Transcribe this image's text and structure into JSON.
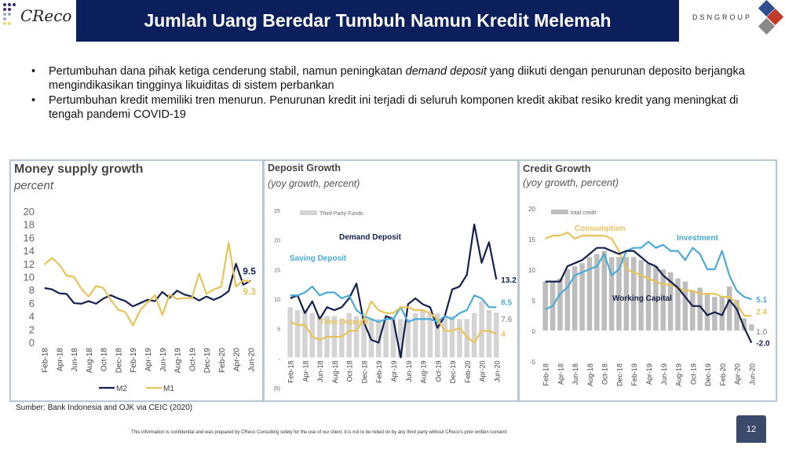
{
  "header": {
    "title": "Jumlah Uang Beredar Tumbuh Namun Kredit Melemah",
    "logo_left": "CReco",
    "logo_right": "DSNGROUP"
  },
  "bullets": [
    {
      "pre": "Pertumbuhan dana pihak ketiga cenderung stabil, namun peningkatan ",
      "em": "demand deposit",
      "post": " yang diikuti dengan penurunan deposito berjangka mengindikasikan tingginya likuiditas di sistem perbankan"
    },
    {
      "pre": "Pertumbuhan kredit memiliki tren menurun. Penurunan kredit ini terjadi di seluruh komponen kredit akibat resiko kredit yang meningkat di tengah pandemi COVID-19",
      "em": "",
      "post": ""
    }
  ],
  "source": "Sumber: Bank Indonesia and OJK via CEIC (2020)",
  "footer": "This information is confidential and was prepared by CReco Consulting solely for the use of our client; it is not to be relied on by any third party without CReco's prior written consent",
  "page_number": "12",
  "chart_data": [
    {
      "type": "line",
      "title": "Money supply growth",
      "subtitle": "percent",
      "ylim": [
        0,
        20
      ],
      "yticks": [
        "0",
        "2",
        "4",
        "6",
        "8",
        "10",
        "12",
        "14",
        "16",
        "18",
        "20"
      ],
      "ytick_values": [
        0,
        2,
        4,
        6,
        8,
        10,
        12,
        14,
        16,
        18,
        20
      ],
      "xticks": [
        "Feb-18",
        "Apr-18",
        "Jun-18",
        "Aug-18",
        "Oct-18",
        "Dec-18",
        "Feb-19",
        "Apr-19",
        "Jun-19",
        "Aug-19",
        "Oct-19",
        "Dec-19",
        "Feb-20",
        "Apr-20",
        "Jun-20"
      ],
      "legend": [
        "M2",
        "M1"
      ],
      "series": [
        {
          "name": "M2",
          "color": "#15214d",
          "values": [
            8.4,
            8.2,
            7.6,
            7.5,
            6.1,
            6.0,
            6.4,
            6.0,
            6.8,
            7.3,
            6.8,
            6.4,
            5.6,
            6.1,
            6.6,
            6.4,
            7.8,
            6.9,
            8.0,
            7.4,
            7.1,
            6.5,
            7.1,
            6.6,
            7.1,
            7.9,
            12.1,
            8.9,
            9.5
          ],
          "end_label": "9.5"
        },
        {
          "name": "M1",
          "color": "#e8c25a",
          "values": [
            12.0,
            13.0,
            12.0,
            10.3,
            10.1,
            8.3,
            7.1,
            8.7,
            8.4,
            6.6,
            5.1,
            4.7,
            2.7,
            5.0,
            6.2,
            7.3,
            4.3,
            7.4,
            6.7,
            6.9,
            6.8,
            10.6,
            7.5,
            8.2,
            8.6,
            15.3,
            8.6,
            9.6,
            9.3
          ],
          "end_label": "9.3"
        }
      ]
    },
    {
      "type": "bar+line",
      "title": "Deposit Growth",
      "subtitle": "(yoy growth, percent)",
      "ylim": [
        -5,
        25
      ],
      "yticks": [
        "(5)",
        "-",
        "5",
        "10",
        "15",
        "20",
        "25"
      ],
      "ytick_values": [
        -5,
        0,
        5,
        10,
        15,
        20,
        25
      ],
      "xticks": [
        "Feb-18",
        "Apr-18",
        "Jun-18",
        "Aug-18",
        "Oct-18",
        "Dec-18",
        "Feb-19",
        "Apr-19",
        "Jun-19",
        "Aug-19",
        "Oct-19",
        "Dec-19",
        "Feb-20",
        "Apr-20",
        "Jun-20"
      ],
      "bar_series": {
        "name": "Third Party Funds",
        "color": "#d4d4d4",
        "values": [
          8.5,
          8,
          8,
          7.5,
          7,
          7,
          7,
          6.5,
          7.5,
          7,
          7,
          6.5,
          6.5,
          6.5,
          6.5,
          6.5,
          6.5,
          7.5,
          8,
          7.5,
          7.5,
          7,
          7,
          6.5,
          6.5,
          7.5,
          9.5,
          8,
          7.6
        ],
        "end_label": "7.6"
      },
      "series": [
        {
          "name": "Demand Deposit",
          "color": "#15214d",
          "values": [
            10,
            10.5,
            7.5,
            9.5,
            6.5,
            8.5,
            8,
            8.5,
            10,
            12.5,
            6,
            3,
            2.5,
            7,
            6.5,
            0,
            9,
            10,
            9,
            8.5,
            5,
            7,
            11.5,
            12,
            14,
            22.5,
            16,
            19.5,
            13.2
          ],
          "end_label": "13.2"
        },
        {
          "name": "Saving Deposit",
          "color": "#4aaad6",
          "values": [
            10.5,
            10.5,
            11,
            12,
            10.5,
            11,
            11,
            10,
            10.5,
            8,
            7,
            6.5,
            6,
            6.5,
            6.5,
            8.5,
            6,
            6.5,
            6.5,
            6.5,
            6,
            7,
            6.5,
            7.5,
            8,
            10.5,
            10,
            8.5,
            8.5
          ],
          "end_label": "8.5"
        },
        {
          "name": "Time Deposit",
          "color": "#e8c25a",
          "values": [
            6,
            5.5,
            5.5,
            3.5,
            3,
            3.5,
            3.5,
            3.5,
            4.5,
            4.5,
            6.5,
            9.5,
            8,
            7.5,
            7.5,
            8.5,
            8.5,
            8,
            8,
            7.5,
            6.5,
            4.5,
            4.5,
            5,
            3.5,
            2.5,
            4.5,
            4.5,
            4
          ],
          "end_label": "4"
        }
      ]
    },
    {
      "type": "bar+line",
      "title": "Credit Growth",
      "subtitle": "(yoy growth, percent)",
      "ylim": [
        -5,
        20
      ],
      "yticks": [
        "-5",
        "0",
        "5",
        "10",
        "15",
        "20"
      ],
      "ytick_values": [
        -5,
        0,
        5,
        10,
        15,
        20
      ],
      "xticks": [
        "Feb-18",
        "Apr-18",
        "Jun-18",
        "Aug-18",
        "Oct-18",
        "Dec-18",
        "Feb-19",
        "Apr-19",
        "Jun-19",
        "Aug-19",
        "Oct-19",
        "Dec-19",
        "Feb-20",
        "Apr-20",
        "Jun-20"
      ],
      "bar_series": {
        "name": "total credit",
        "color": "#bdbdbd",
        "values": [
          8,
          8,
          8.5,
          10,
          10.5,
          11,
          12,
          12.5,
          13,
          12,
          12,
          12,
          12,
          11.5,
          11,
          10.5,
          10,
          9.5,
          8.5,
          8,
          6.5,
          7,
          6,
          5.5,
          5.5,
          7.2,
          5,
          2,
          1.0
        ],
        "end_label": "1.0"
      },
      "series": [
        {
          "name": "Consumption",
          "color": "#e8c25a",
          "values": [
            15,
            15.5,
            15.5,
            16,
            15,
            15.5,
            15.5,
            15.5,
            15.5,
            15,
            13,
            10,
            9.5,
            9,
            8.5,
            8,
            7.5,
            7.5,
            7,
            6.5,
            6.5,
            6,
            6,
            6,
            5.5,
            5.5,
            4.5,
            2.4,
            2.4
          ],
          "end_label": "2.4"
        },
        {
          "name": "Investment",
          "color": "#4aaad6",
          "values": [
            3.5,
            4,
            6,
            7,
            9,
            9.5,
            10,
            10.5,
            12.5,
            9,
            10,
            13,
            13.5,
            13.5,
            14.5,
            13.5,
            14,
            13,
            13,
            11.5,
            13.5,
            12.5,
            10,
            10,
            13,
            9,
            6.5,
            5.5,
            5.1
          ],
          "end_label": "5.1"
        },
        {
          "name": "Working Capital",
          "color": "#15214d",
          "values": [
            8,
            8,
            8,
            10.5,
            11,
            11.5,
            12.5,
            13.5,
            13.5,
            13,
            12.5,
            13,
            13,
            12,
            11,
            10.5,
            9,
            8,
            7,
            5.5,
            4,
            4,
            2.5,
            3,
            2.5,
            5,
            3.5,
            0.5,
            -2.0
          ],
          "end_label": "-2.0"
        }
      ]
    }
  ]
}
